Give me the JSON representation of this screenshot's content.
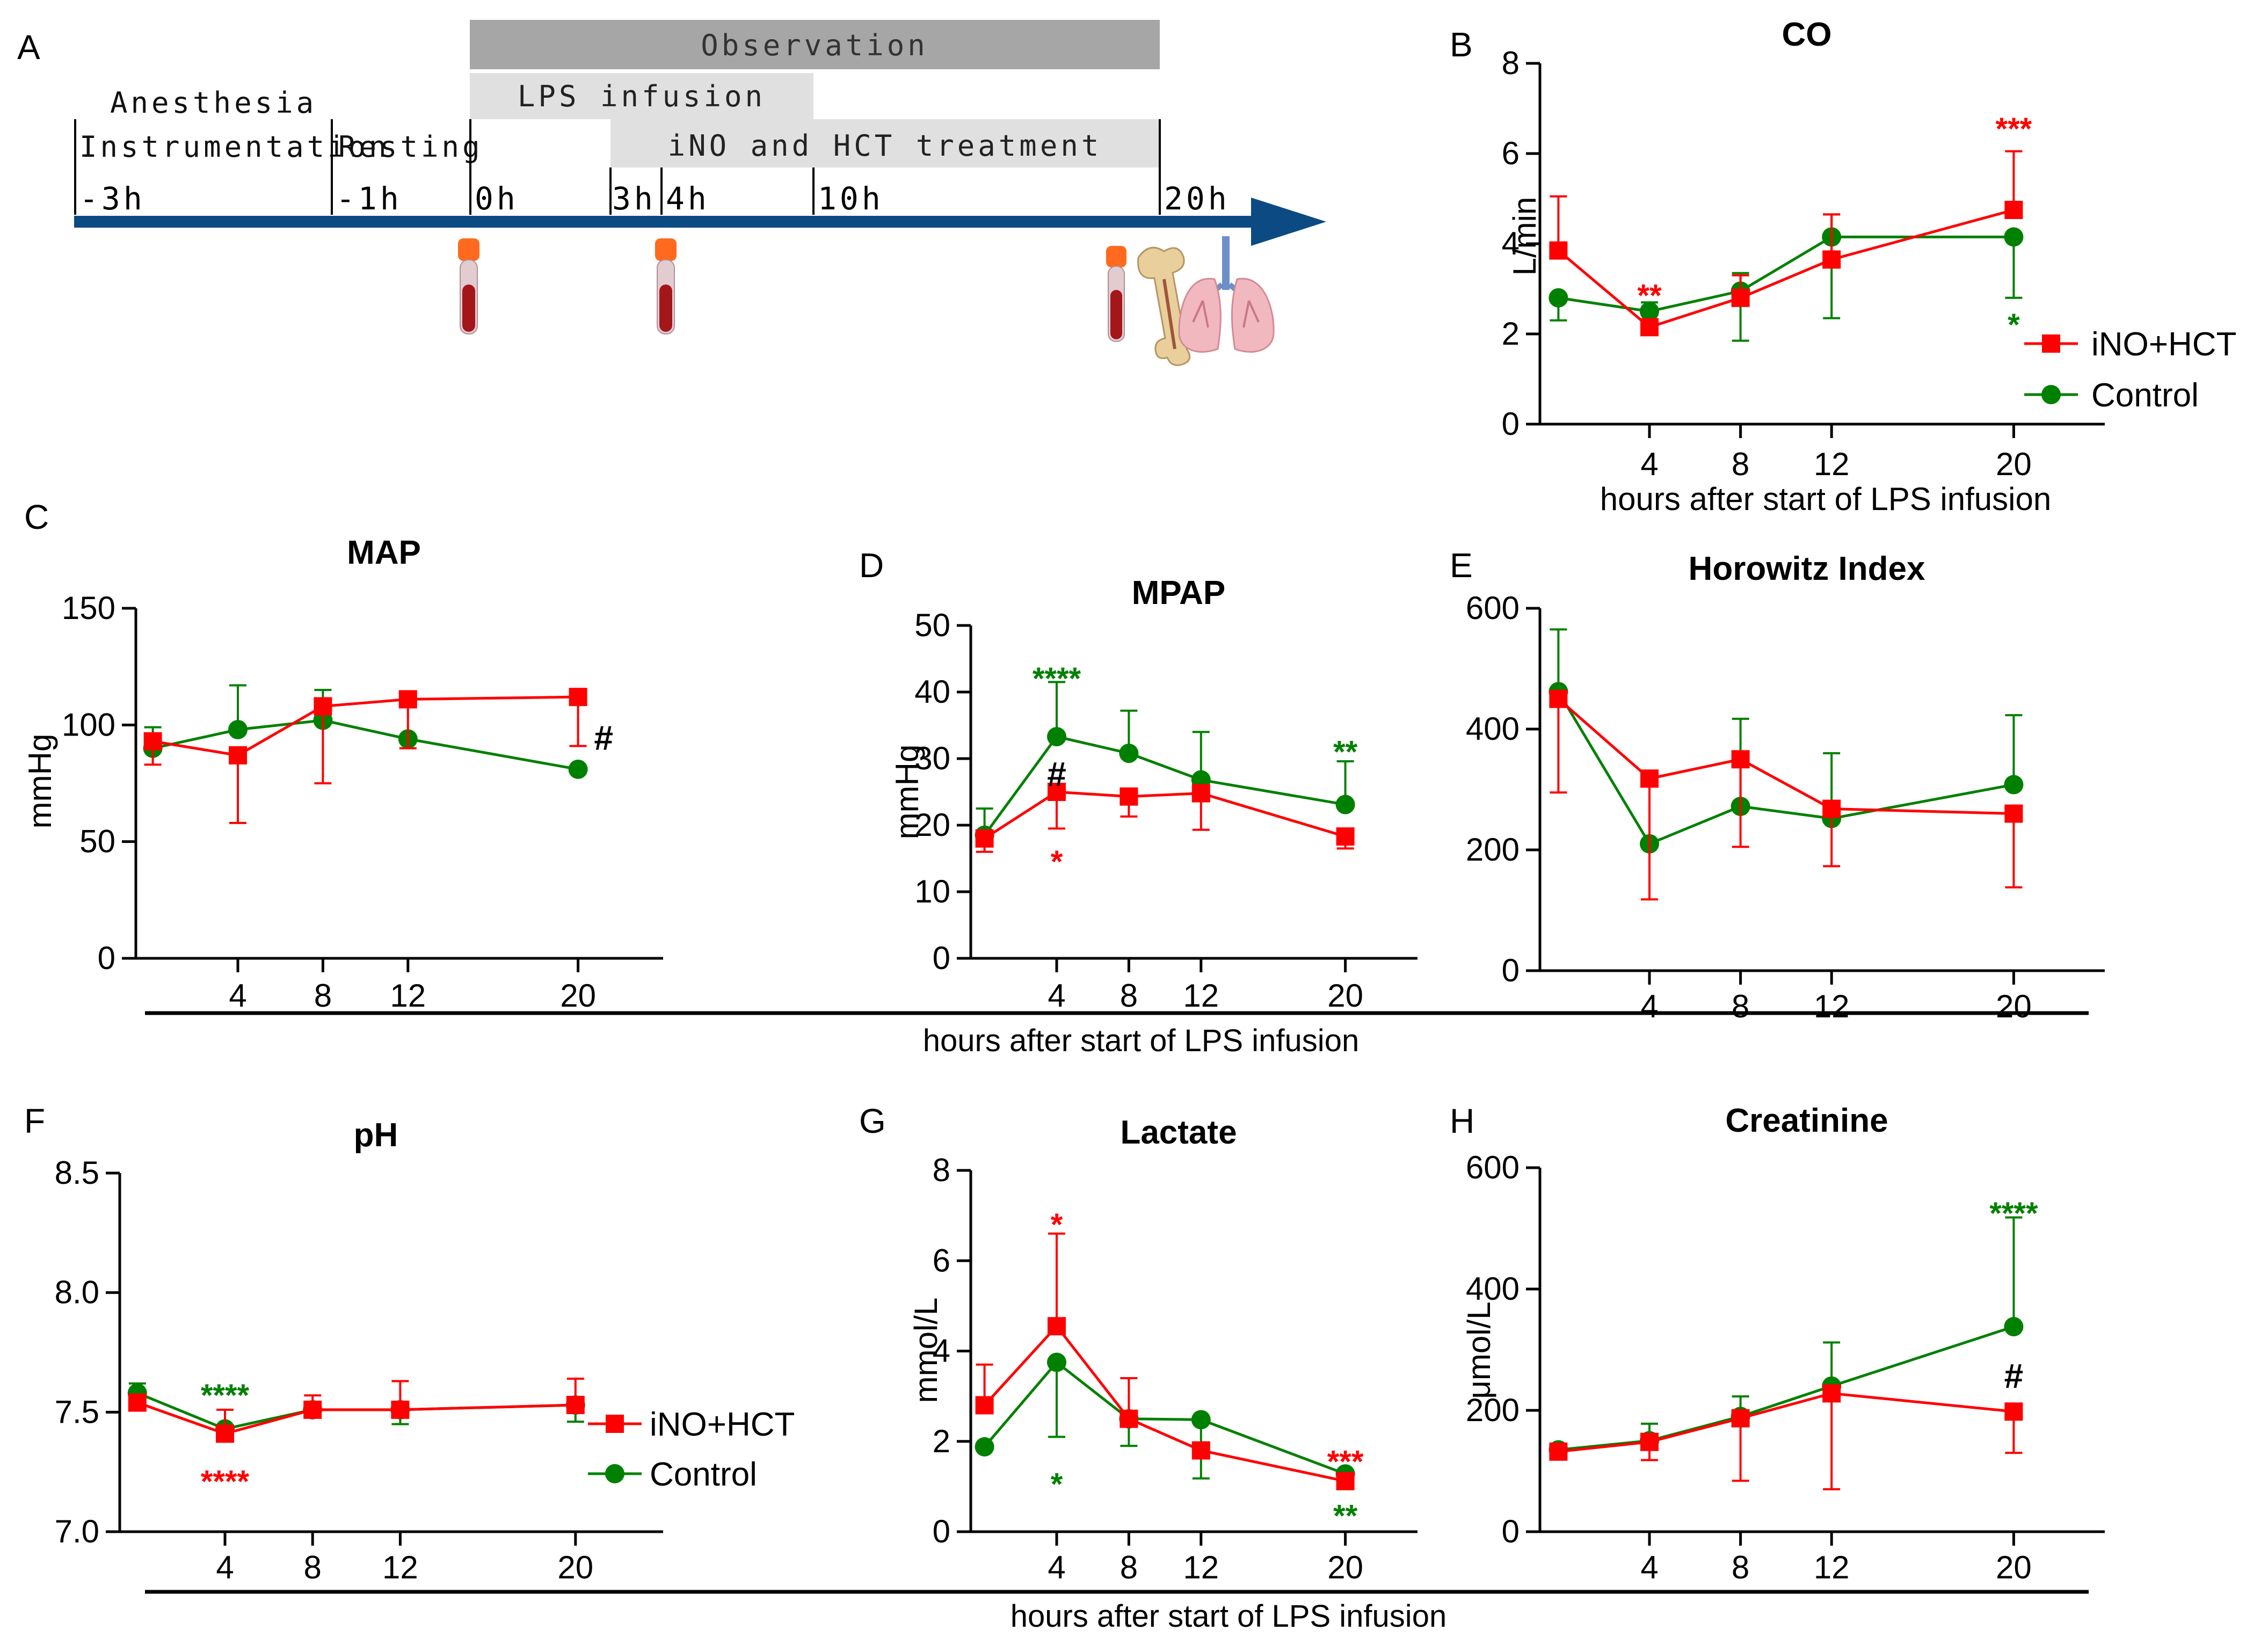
{
  "colors": {
    "treatment": "#ff0000",
    "control": "#008000",
    "arrow": "#0c4a83",
    "observation_bar": "#a6a6a6",
    "light_bar": "#e0e0e0",
    "axis": "#000000"
  },
  "timeline": {
    "panel_letter": "A",
    "bars": {
      "observation": "Observation",
      "lps": "LPS infusion",
      "ino": "iNO and HCT treatment"
    },
    "phases": {
      "anesthesia": "Anesthesia",
      "instrumentation": "Instrumentation",
      "resting": "Resting"
    },
    "ticks": [
      "-3h",
      "-1h",
      "0h",
      "3h",
      "4h",
      "10h",
      "20h"
    ],
    "sample_icons": [
      "blood-tube-icon",
      "blood-tube-icon",
      "blood-tube-icon",
      "bone-icon",
      "lungs-icon"
    ]
  },
  "shared_xlabel": "hours after start of  LPS infusion",
  "chart_data": [
    {
      "id": "B",
      "letter": "B",
      "type": "line",
      "title": "CO",
      "xlabel": "hours after start of  LPS infusion",
      "ylabel": "L/min",
      "xlim": [
        -1,
        24
      ],
      "ylim": [
        0,
        8
      ],
      "yticks": [
        0,
        2,
        4,
        6,
        8
      ],
      "xticks": [
        4,
        8,
        12,
        20
      ],
      "ytick_labels": [
        "0",
        "2",
        "4",
        "6",
        "8"
      ],
      "xtick_labels": [
        "4",
        "8",
        "12",
        "20"
      ],
      "series": [
        {
          "name": "iNO+HCT",
          "color": "treatment",
          "marker": "square",
          "x": [
            0,
            4,
            8,
            12,
            20
          ],
          "y": [
            3.85,
            2.15,
            2.8,
            3.65,
            4.75
          ],
          "err_up": [
            1.2,
            0,
            0.5,
            1.0,
            1.3
          ],
          "err_down": [
            0,
            0,
            0,
            0,
            0
          ]
        },
        {
          "name": "Control",
          "color": "control",
          "marker": "circle",
          "x": [
            0,
            4,
            8,
            12,
            20
          ],
          "y": [
            2.8,
            2.5,
            2.95,
            4.15,
            4.15
          ],
          "err_up": [
            0,
            0.2,
            0.4,
            0.5,
            0
          ],
          "err_down": [
            0.5,
            0,
            1.1,
            1.8,
            1.35
          ]
        }
      ],
      "annotations": [
        {
          "text": "**",
          "x": 4,
          "y": 2.85,
          "color": "treatment"
        },
        {
          "text": "***",
          "x": 20,
          "y": 6.55,
          "color": "treatment"
        },
        {
          "text": "*",
          "x": 20,
          "y": 2.2,
          "color": "control"
        }
      ],
      "legend": {
        "items": [
          "iNO+HCT",
          "Control"
        ],
        "position": "right"
      }
    },
    {
      "id": "C",
      "letter": "C",
      "type": "line",
      "title": "MAP",
      "xlabel": "",
      "ylabel": "mmHg",
      "xlim": [
        -1,
        24
      ],
      "ylim": [
        0,
        150
      ],
      "yticks": [
        0,
        50,
        100,
        150
      ],
      "xticks": [
        4,
        8,
        12,
        20
      ],
      "ytick_labels": [
        "0",
        "50",
        "100",
        "150"
      ],
      "xtick_labels": [
        "4",
        "8",
        "12",
        "20"
      ],
      "series": [
        {
          "name": "iNO+HCT",
          "color": "treatment",
          "marker": "square",
          "x": [
            0,
            4,
            8,
            12,
            20
          ],
          "y": [
            93,
            87,
            108,
            111,
            112
          ],
          "err_up": [
            0,
            0,
            0,
            0,
            0
          ],
          "err_down": [
            10,
            29,
            33,
            21,
            21
          ]
        },
        {
          "name": "Control",
          "color": "control",
          "marker": "circle",
          "x": [
            0,
            4,
            8,
            12,
            20
          ],
          "y": [
            90,
            98,
            102,
            94,
            81
          ],
          "err_up": [
            9,
            19,
            13,
            0,
            0
          ],
          "err_down": [
            0,
            0,
            0,
            0,
            0
          ]
        }
      ],
      "annotations": [
        {
          "text": "#",
          "x": 21.2,
          "y": 94,
          "color": "axis"
        }
      ]
    },
    {
      "id": "D",
      "letter": "D",
      "type": "line",
      "title": "MPAP",
      "xlabel": "",
      "ylabel": "mmHg",
      "xlim": [
        -1,
        24
      ],
      "ylim": [
        0,
        50
      ],
      "yticks": [
        0,
        10,
        20,
        30,
        40,
        50
      ],
      "xticks": [
        4,
        8,
        12,
        20
      ],
      "ytick_labels": [
        "0",
        "10",
        "20",
        "30",
        "40",
        "50"
      ],
      "xtick_labels": [
        "4",
        "8",
        "12",
        "20"
      ],
      "series": [
        {
          "name": "iNO+HCT",
          "color": "treatment",
          "marker": "square",
          "x": [
            0,
            4,
            8,
            12,
            20
          ],
          "y": [
            18,
            25,
            24.3,
            24.8,
            18.3
          ],
          "err_up": [
            0,
            0,
            0,
            0,
            0
          ],
          "err_down": [
            2,
            5.5,
            3,
            5.5,
            1.8
          ]
        },
        {
          "name": "Control",
          "color": "control",
          "marker": "circle",
          "x": [
            0,
            4,
            8,
            12,
            20
          ],
          "y": [
            18.5,
            33.3,
            30.8,
            26.8,
            23.1
          ],
          "err_up": [
            4,
            8.2,
            6.4,
            7.2,
            6.5
          ],
          "err_down": [
            0,
            0,
            0,
            0,
            0
          ]
        }
      ],
      "annotations": [
        {
          "text": "****",
          "x": 4,
          "y": 42,
          "color": "control"
        },
        {
          "text": "#",
          "x": 4,
          "y": 27.5,
          "color": "axis"
        },
        {
          "text": "*",
          "x": 4,
          "y": 14.5,
          "color": "treatment"
        },
        {
          "text": "**",
          "x": 20,
          "y": 31,
          "color": "control"
        }
      ]
    },
    {
      "id": "E",
      "letter": "E",
      "type": "line",
      "title": "Horowitz Index",
      "xlabel": "",
      "ylabel": "",
      "xlim": [
        -1,
        24
      ],
      "ylim": [
        0,
        600
      ],
      "yticks": [
        0,
        200,
        400,
        600
      ],
      "xticks": [
        4,
        8,
        12,
        20
      ],
      "ytick_labels": [
        "0",
        "200",
        "400",
        "600"
      ],
      "xtick_labels": [
        "4",
        "8",
        "12",
        "20"
      ],
      "series": [
        {
          "name": "iNO+HCT",
          "color": "treatment",
          "marker": "square",
          "x": [
            0,
            4,
            8,
            12,
            20
          ],
          "y": [
            450,
            318,
            350,
            268,
            260
          ],
          "err_up": [
            0,
            0,
            0,
            0,
            0
          ],
          "err_down": [
            155,
            200,
            145,
            95,
            122
          ]
        },
        {
          "name": "Control",
          "color": "control",
          "marker": "circle",
          "x": [
            0,
            4,
            8,
            12,
            20
          ],
          "y": [
            462,
            210,
            272,
            252,
            308
          ],
          "err_up": [
            103,
            0,
            145,
            108,
            115
          ],
          "err_down": [
            0,
            0,
            0,
            0,
            0
          ]
        }
      ],
      "annotations": []
    },
    {
      "id": "F",
      "letter": "F",
      "type": "line",
      "title": "pH",
      "xlabel": "",
      "ylabel": "",
      "xlim": [
        -1,
        24
      ],
      "ylim": [
        7.0,
        8.5
      ],
      "yticks": [
        7.0,
        7.5,
        8.0,
        8.5
      ],
      "xticks": [
        4,
        8,
        12,
        20
      ],
      "ytick_labels": [
        "7.0",
        "7.5",
        "8.0",
        "8.5"
      ],
      "xtick_labels": [
        "4",
        "8",
        "12",
        "20"
      ],
      "series": [
        {
          "name": "iNO+HCT",
          "color": "treatment",
          "marker": "square",
          "x": [
            0,
            4,
            8,
            12,
            20
          ],
          "y": [
            7.54,
            7.41,
            7.51,
            7.51,
            7.53
          ],
          "err_up": [
            0,
            0.1,
            0.06,
            0.12,
            0.11
          ],
          "err_down": [
            0,
            0,
            0,
            0,
            0
          ]
        },
        {
          "name": "Control",
          "color": "control",
          "marker": "circle",
          "x": [
            0,
            4,
            8,
            12,
            20
          ],
          "y": [
            7.58,
            7.43,
            7.51,
            7.51,
            7.53
          ],
          "err_up": [
            0.04,
            0,
            0,
            0,
            0
          ],
          "err_down": [
            0,
            0,
            0,
            0.06,
            0.07
          ]
        }
      ],
      "annotations": [
        {
          "text": "****",
          "x": 4,
          "y": 7.57,
          "color": "control"
        },
        {
          "text": "****",
          "x": 4,
          "y": 7.21,
          "color": "treatment"
        }
      ],
      "legend": {
        "items": [
          "iNO+HCT",
          "Control"
        ],
        "position": "right"
      }
    },
    {
      "id": "G",
      "letter": "G",
      "type": "line",
      "title": "Lactate",
      "xlabel": "",
      "ylabel": "mmol/L",
      "xlim": [
        -1,
        24
      ],
      "ylim": [
        0,
        8
      ],
      "yticks": [
        0,
        2,
        4,
        6,
        8
      ],
      "xticks": [
        4,
        8,
        12,
        20
      ],
      "ytick_labels": [
        "0",
        "2",
        "4",
        "6",
        "8"
      ],
      "xtick_labels": [
        "4",
        "8",
        "12",
        "20"
      ],
      "series": [
        {
          "name": "iNO+HCT",
          "color": "treatment",
          "marker": "square",
          "x": [
            0,
            4,
            8,
            12,
            20
          ],
          "y": [
            2.8,
            4.55,
            2.5,
            1.8,
            1.12
          ],
          "err_up": [
            0.9,
            2.05,
            0.9,
            0,
            0
          ],
          "err_down": [
            0,
            0,
            0,
            0,
            0
          ]
        },
        {
          "name": "Control",
          "color": "control",
          "marker": "circle",
          "x": [
            0,
            4,
            8,
            12,
            20
          ],
          "y": [
            1.88,
            3.75,
            2.5,
            2.48,
            1.28
          ],
          "err_up": [
            0,
            0,
            0,
            0,
            0
          ],
          "err_down": [
            0,
            1.65,
            0.6,
            1.3,
            0
          ]
        }
      ],
      "annotations": [
        {
          "text": "*",
          "x": 4,
          "y": 6.8,
          "color": "treatment"
        },
        {
          "text": "*",
          "x": 4,
          "y": 1.05,
          "color": "control"
        },
        {
          "text": "***",
          "x": 20,
          "y": 1.55,
          "color": "treatment"
        },
        {
          "text": "**",
          "x": 20,
          "y": 0.35,
          "color": "control"
        }
      ]
    },
    {
      "id": "H",
      "letter": "H",
      "type": "line",
      "title": "Creatinine",
      "xlabel": "",
      "ylabel": "μmol/L",
      "xlim": [
        -1,
        24
      ],
      "ylim": [
        0,
        600
      ],
      "yticks": [
        0,
        200,
        400,
        600
      ],
      "xticks": [
        4,
        8,
        12,
        20
      ],
      "ytick_labels": [
        "0",
        "200",
        "400",
        "600"
      ],
      "xtick_labels": [
        "4",
        "8",
        "12",
        "20"
      ],
      "series": [
        {
          "name": "iNO+HCT",
          "color": "treatment",
          "marker": "square",
          "x": [
            0,
            4,
            8,
            12,
            20
          ],
          "y": [
            132,
            148,
            187,
            228,
            198
          ],
          "err_up": [
            0,
            0,
            0,
            0,
            0
          ],
          "err_down": [
            0,
            30,
            103,
            158,
            68
          ]
        },
        {
          "name": "Control",
          "color": "control",
          "marker": "circle",
          "x": [
            0,
            4,
            8,
            12,
            20
          ],
          "y": [
            135,
            150,
            190,
            240,
            338
          ],
          "err_up": [
            0,
            28,
            33,
            72,
            180
          ],
          "err_down": [
            0,
            0,
            0,
            0,
            0
          ]
        }
      ],
      "annotations": [
        {
          "text": "****",
          "x": 20,
          "y": 525,
          "color": "control"
        },
        {
          "text": "#",
          "x": 20,
          "y": 255,
          "color": "axis"
        }
      ]
    }
  ]
}
